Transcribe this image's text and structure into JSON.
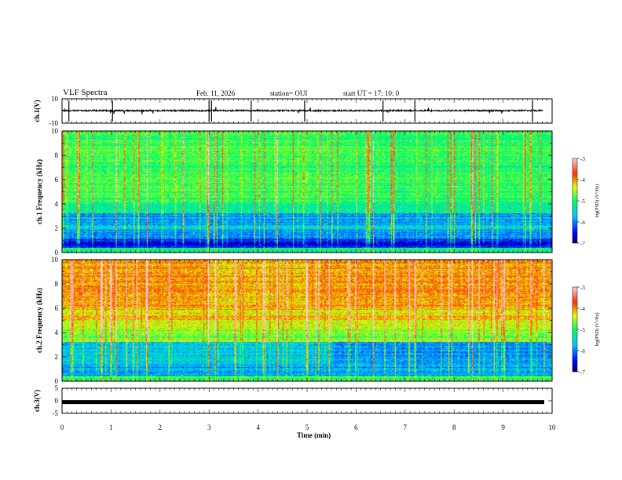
{
  "header": {
    "title": "VLF Spectra",
    "date": "Feb. 11, 2026",
    "station": "station= OUI",
    "start": "start  UT =   17: 10: 0"
  },
  "chart_data": [
    {
      "type": "line",
      "name": "ch1-waveform",
      "ylabel": "ch.1(V)",
      "ylim": [
        -10,
        10
      ],
      "yticks": [
        "10",
        "-10"
      ],
      "xlim": [
        0,
        10
      ]
    },
    {
      "type": "heatmap",
      "name": "ch1-spectrogram",
      "ylabel": "ch.1 Frequency (kHz)",
      "ylim": [
        0,
        10
      ],
      "yticks": [
        "0",
        "2",
        "4",
        "6",
        "8",
        "10"
      ],
      "colorbar": {
        "label": "log(PSD) (V²/Hz)",
        "ticks": [
          "-3",
          "-4",
          "-5",
          "-6",
          "-7"
        ],
        "range": [
          -7,
          -3
        ]
      }
    },
    {
      "type": "heatmap",
      "name": "ch2-spectrogram",
      "ylabel": "ch.2 Frequency (kHz)",
      "ylim": [
        0,
        10
      ],
      "yticks": [
        "0",
        "2",
        "4",
        "6",
        "8",
        "10"
      ],
      "colorbar": {
        "label": "log(PSD) (V²/Hz)",
        "ticks": [
          "-3",
          "-4",
          "-5",
          "-6",
          "-7"
        ],
        "range": [
          -7,
          -3
        ]
      }
    },
    {
      "type": "line",
      "name": "ch3-waveform",
      "ylabel": "ch.3(V)",
      "ylim": [
        -5,
        5
      ],
      "yticks": [
        "5",
        "0",
        "-5"
      ],
      "value_level": -0.5
    }
  ],
  "xaxis": {
    "label": "Time (min)",
    "ticks": [
      "0",
      "1",
      "2",
      "3",
      "4",
      "5",
      "6",
      "7",
      "8",
      "9",
      "10"
    ],
    "range": [
      0,
      10
    ]
  },
  "ylabels": {
    "ch1": "ch.1(V)",
    "ch1f": "ch.1 Frequency (kHz)",
    "ch2f": "ch.2 Frequency (kHz)",
    "ch3": "ch.3(V)",
    "cbar": "log(PSD) (V²/Hz)"
  }
}
